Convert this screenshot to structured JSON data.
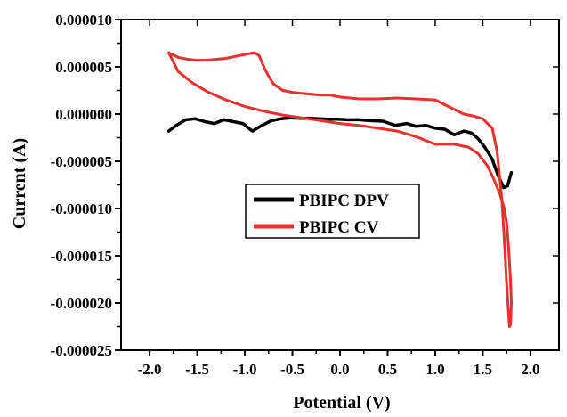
{
  "chart_data": {
    "type": "line",
    "xlabel": "Potential (V)",
    "ylabel": "Current (A)",
    "xlim": [
      -2.3,
      2.3
    ],
    "ylim": [
      -2.5e-05,
      1e-05
    ],
    "x_ticks": [
      -2.0,
      -1.5,
      -1.0,
      -0.5,
      0.0,
      0.5,
      1.0,
      1.5,
      2.0
    ],
    "x_tick_labels": [
      "-2.0",
      "-1.5",
      "-1.0",
      "-0.5",
      "0.0",
      "0.5",
      "1.0",
      "1.5",
      "2.0"
    ],
    "y_ticks": [
      1e-05,
      5e-06,
      0.0,
      -5e-06,
      -1e-05,
      -1.5e-05,
      -2e-05,
      -2.5e-05
    ],
    "y_tick_labels": [
      "0.000010",
      "0.000005",
      "0.000000",
      "-0.000005",
      "-0.000010",
      "-0.000015",
      "-0.000020",
      "-0.000025"
    ],
    "grid": false,
    "legend_position": "center",
    "series": [
      {
        "name": "PBIPC DPV",
        "color": "#000000",
        "x": [
          -1.8,
          -1.72,
          -1.62,
          -1.52,
          -1.42,
          -1.32,
          -1.22,
          -1.12,
          -1.02,
          -0.92,
          -0.82,
          -0.72,
          -0.62,
          -0.52,
          -0.42,
          -0.32,
          -0.22,
          -0.12,
          -0.02,
          0.08,
          0.2,
          0.32,
          0.45,
          0.58,
          0.7,
          0.8,
          0.9,
          1.0,
          1.1,
          1.2,
          1.3,
          1.38,
          1.45,
          1.52,
          1.6,
          1.66,
          1.72,
          1.76,
          1.8
        ],
        "y": [
          -1.8e-06,
          -1.2e-06,
          -6e-07,
          -5e-07,
          -8e-07,
          -1e-06,
          -6e-07,
          -8e-07,
          -1e-06,
          -1.8e-06,
          -1.2e-06,
          -7e-07,
          -5e-07,
          -4e-07,
          -4.5e-07,
          -4.5e-07,
          -5e-07,
          -5.5e-07,
          -5.5e-07,
          -6e-07,
          -6e-07,
          -7e-07,
          -7.5e-07,
          -1.2e-06,
          -1e-06,
          -1.3e-06,
          -1.2e-06,
          -1.5e-06,
          -1.6e-06,
          -2.2e-06,
          -1.8e-06,
          -2e-06,
          -2.6e-06,
          -3.5e-06,
          -4.8e-06,
          -6.5e-06,
          -7.8e-06,
          -7.6e-06,
          -6.2e-06
        ]
      },
      {
        "name": "PBIPC CV",
        "color": "#e8302c",
        "x": [
          -1.8,
          -1.7,
          -1.6,
          -1.5,
          -1.4,
          -1.3,
          -1.2,
          -1.1,
          -1.0,
          -0.9,
          -0.85,
          -0.8,
          -0.75,
          -0.7,
          -0.6,
          -0.5,
          -0.4,
          -0.3,
          -0.2,
          -0.1,
          0.0,
          0.2,
          0.4,
          0.6,
          0.8,
          1.0,
          1.2,
          1.3,
          1.4,
          1.5,
          1.6,
          1.65,
          1.7,
          1.73,
          1.75,
          1.77,
          1.78,
          1.79,
          1.8,
          1.79,
          1.77,
          1.75,
          1.72,
          1.68,
          1.62,
          1.55,
          1.45,
          1.35,
          1.2,
          1.0,
          0.8,
          0.6,
          0.4,
          0.2,
          0.0,
          -0.2,
          -0.4,
          -0.6,
          -0.8,
          -1.0,
          -1.2,
          -1.4,
          -1.55,
          -1.7,
          -1.8
        ],
        "y": [
          6.5e-06,
          6e-06,
          5.8e-06,
          5.7e-06,
          5.7e-06,
          5.8e-06,
          5.9e-06,
          6.1e-06,
          6.3e-06,
          6.5e-06,
          6.2e-06,
          5e-06,
          4e-06,
          3.2e-06,
          2.5e-06,
          2.3e-06,
          2.2e-06,
          2.1e-06,
          2e-06,
          2e-06,
          1.8e-06,
          1.6e-06,
          1.6e-06,
          1.7e-06,
          1.6e-06,
          1.5e-06,
          5e-07,
          0.0,
          -2e-07,
          -5e-07,
          -1.5e-06,
          -4e-06,
          -9e-06,
          -1.4e-05,
          -1.8e-05,
          -2.1e-05,
          -2.25e-05,
          -2.23e-05,
          -2e-05,
          -1.75e-05,
          -1.4e-05,
          -1.15e-05,
          -9.8e-06,
          -8.5e-06,
          -7e-06,
          -5.5e-06,
          -4.2e-06,
          -3.5e-06,
          -3.2e-06,
          -3.2e-06,
          -2.4e-06,
          -1.8e-06,
          -1.5e-06,
          -1.2e-06,
          -1e-06,
          -7e-07,
          -4e-07,
          -1e-07,
          3e-07,
          8e-07,
          1.5e-06,
          2.4e-06,
          3.3e-06,
          4.5e-06,
          6.5e-06
        ]
      }
    ]
  }
}
